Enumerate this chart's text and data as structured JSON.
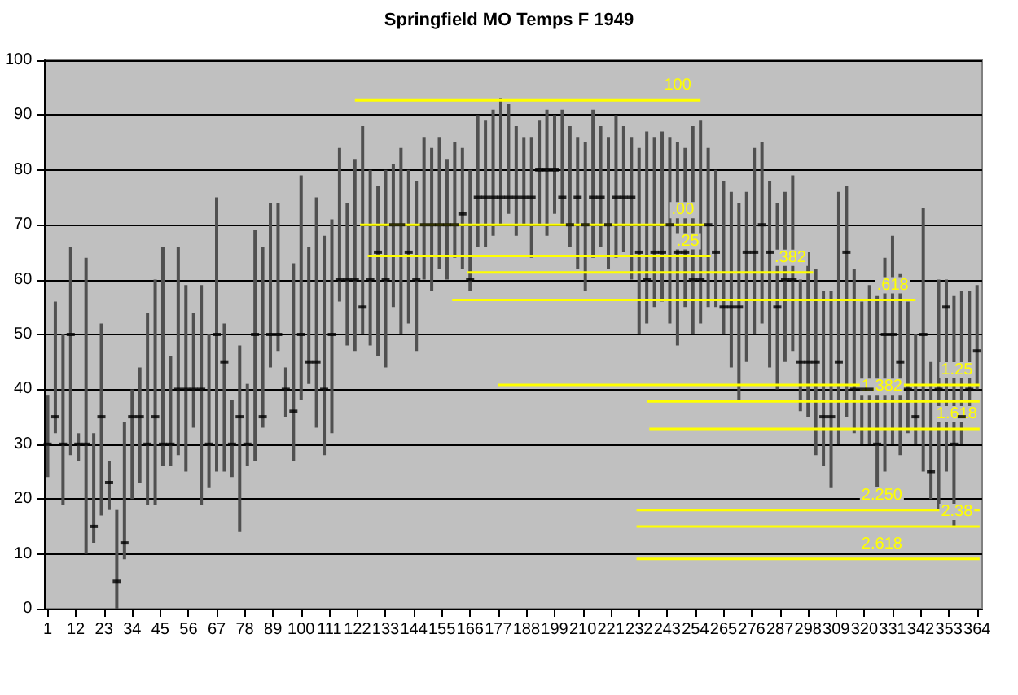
{
  "chart_data": {
    "type": "bar",
    "title": "Springfield MO Temps F 1949",
    "xlim": [
      0,
      366
    ],
    "xticks": [
      1,
      12,
      23,
      34,
      45,
      56,
      67,
      78,
      89,
      100,
      111,
      122,
      133,
      144,
      155,
      166,
      177,
      188,
      199,
      210,
      221,
      232,
      243,
      254,
      265,
      276,
      287,
      298,
      309,
      320,
      331,
      342,
      353,
      364
    ],
    "ylim": [
      0,
      100
    ],
    "yticks": [
      0,
      10,
      20,
      30,
      40,
      50,
      60,
      70,
      80,
      90,
      100
    ],
    "grid": "y",
    "legend": false,
    "x": [
      1,
      4,
      7,
      10,
      13,
      16,
      19,
      22,
      25,
      28,
      31,
      34,
      37,
      40,
      43,
      46,
      49,
      52,
      55,
      58,
      61,
      64,
      67,
      70,
      73,
      76,
      79,
      82,
      85,
      88,
      91,
      94,
      97,
      100,
      103,
      106,
      109,
      112,
      115,
      118,
      121,
      124,
      127,
      130,
      133,
      136,
      139,
      142,
      145,
      148,
      151,
      154,
      157,
      160,
      163,
      166,
      169,
      172,
      175,
      178,
      181,
      184,
      187,
      190,
      193,
      196,
      199,
      202,
      205,
      208,
      211,
      214,
      217,
      220,
      223,
      226,
      229,
      232,
      235,
      238,
      241,
      244,
      247,
      250,
      253,
      256,
      259,
      262,
      265,
      268,
      271,
      274,
      277,
      280,
      283,
      286,
      289,
      292,
      295,
      298,
      301,
      304,
      307,
      310,
      313,
      316,
      319,
      322,
      325,
      328,
      331,
      334,
      337,
      340,
      343,
      346,
      349,
      352,
      355,
      358,
      361,
      364
    ],
    "series": [
      {
        "color": "#505050",
        "base": [
          24,
          32,
          19,
          28,
          27,
          10,
          12,
          17,
          18,
          0,
          9,
          20,
          23,
          19,
          19,
          26,
          26,
          28,
          25,
          33,
          19,
          22,
          25,
          25,
          24,
          14,
          26,
          27,
          33,
          44,
          47,
          35,
          27,
          38,
          41,
          33,
          28,
          32,
          56,
          48,
          47,
          50,
          48,
          46,
          44,
          55,
          50,
          52,
          47,
          60,
          58,
          62,
          60,
          64,
          62,
          58,
          66,
          66,
          68,
          70,
          72,
          68,
          70,
          64,
          70,
          68,
          72,
          70,
          66,
          62,
          58,
          64,
          66,
          62,
          64,
          65,
          60,
          50,
          52,
          55,
          56,
          52,
          48,
          55,
          50,
          52,
          55,
          55,
          50,
          44,
          38,
          45,
          50,
          52,
          44,
          40,
          45,
          47,
          36,
          35,
          28,
          26,
          22,
          30,
          35,
          32,
          30,
          30,
          21,
          25,
          30,
          28,
          32,
          30,
          25,
          20,
          18,
          25,
          15,
          30,
          35,
          40
        ],
        "values": [
          15,
          24,
          31,
          38,
          5,
          54,
          20,
          35,
          9,
          18,
          25,
          20,
          21,
          35,
          41,
          40,
          20,
          38,
          34,
          21,
          40,
          28,
          50,
          27,
          14,
          34,
          15,
          42,
          33,
          30,
          27,
          9,
          36,
          41,
          25,
          42,
          40,
          39,
          28,
          26,
          35,
          38,
          32,
          31,
          36,
          26,
          34,
          28,
          31,
          26,
          26,
          24,
          22,
          21,
          22,
          22,
          24,
          23,
          23,
          23,
          20,
          20,
          16,
          22,
          19,
          23,
          18,
          21,
          22,
          24,
          27,
          27,
          22,
          24,
          26,
          23,
          26,
          34,
          35,
          31,
          31,
          34,
          37,
          29,
          38,
          37,
          29,
          25,
          28,
          32,
          36,
          31,
          34,
          33,
          34,
          34,
          31,
          32,
          24,
          30,
          34,
          32,
          36,
          46,
          42,
          30,
          26,
          29,
          36,
          39,
          38,
          33,
          24,
          20,
          48,
          25,
          42,
          35,
          42,
          28,
          23,
          19
        ]
      },
      {
        "type": "scatter",
        "color": "#000000",
        "marker": "square",
        "values": [
          30,
          35,
          30,
          50,
          30,
          30,
          15,
          35,
          23,
          5,
          12,
          35,
          35,
          30,
          35,
          30,
          30,
          40,
          40,
          40,
          40,
          30,
          50,
          45,
          30,
          35,
          30,
          50,
          35,
          50,
          50,
          40,
          36,
          50,
          45,
          45,
          40,
          50,
          60,
          60,
          60,
          55,
          60,
          65,
          60,
          70,
          70,
          65,
          60,
          70,
          70,
          70,
          70,
          70,
          72,
          60,
          75,
          75,
          75,
          75,
          75,
          75,
          75,
          75,
          80,
          80,
          80,
          75,
          70,
          75,
          70,
          75,
          75,
          70,
          75,
          75,
          75,
          65,
          60,
          65,
          65,
          70,
          65,
          65,
          60,
          60,
          70,
          65,
          55,
          55,
          55,
          65,
          65,
          70,
          65,
          55,
          60,
          60,
          45,
          45,
          45,
          35,
          35,
          45,
          65,
          40,
          40,
          40,
          30,
          50,
          50,
          45,
          40,
          35,
          50,
          25,
          40,
          55,
          30,
          35,
          40,
          47
        ]
      },
      {
        "type": "line",
        "name": "100",
        "color": "#ffff00",
        "x": [
          121,
          256
        ],
        "values": [
          92.7,
          92.7
        ]
      },
      {
        "type": "line",
        "name": ".00",
        "color": "#ffff00",
        "x": [
          123,
          258
        ],
        "values": [
          70,
          70
        ]
      },
      {
        "type": "line",
        "name": ".25",
        "color": "#ffff00",
        "x": [
          126,
          260
        ],
        "values": [
          64.3,
          64.3
        ]
      },
      {
        "type": "line",
        "name": ".382",
        "color": "#ffff00",
        "x": [
          165,
          300
        ],
        "values": [
          61.3,
          61.3
        ]
      },
      {
        "type": "line",
        "name": ".618",
        "color": "#ffff00",
        "x": [
          159,
          340
        ],
        "values": [
          56.3,
          56.3
        ]
      },
      {
        "type": "line",
        "name": "1.25",
        "color": "#ffff00",
        "x": [
          177,
          365
        ],
        "values": [
          40.8,
          40.8
        ]
      },
      {
        "type": "line",
        "name": "1.382",
        "color": "#ffff00",
        "x": [
          235,
          365
        ],
        "values": [
          37.8,
          37.8
        ]
      },
      {
        "type": "line",
        "name": "1.618",
        "color": "#ffff00",
        "x": [
          236,
          365
        ],
        "values": [
          32.8,
          32.8
        ]
      },
      {
        "type": "line",
        "name": "2.250",
        "color": "#ffff00",
        "x": [
          231,
          365
        ],
        "values": [
          18,
          18
        ]
      },
      {
        "type": "line",
        "name": "2.38",
        "color": "#ffff00",
        "x": [
          231,
          365
        ],
        "values": [
          15,
          15
        ]
      },
      {
        "type": "line",
        "name": "2.618",
        "color": "#ffff00",
        "x": [
          231,
          365
        ],
        "values": [
          9.1,
          9.1
        ]
      }
    ]
  }
}
